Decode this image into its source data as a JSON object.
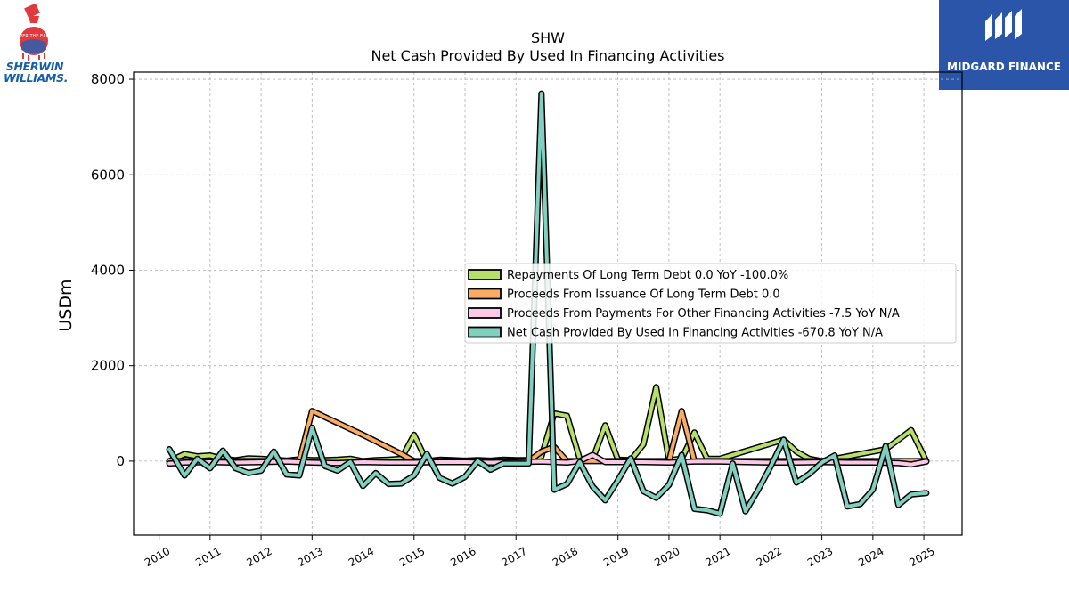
{
  "brand": {
    "left_name": "SHERWIN WILLIAMS.",
    "left_line1": "SHERWIN",
    "left_line2": "WILLIAMS.",
    "left_logo_tagline": "COVER THE EARTH",
    "right_name": "MIDGARD FINANCE"
  },
  "chart_data": {
    "type": "line",
    "title": "SHW",
    "subtitle": "Net Cash Provided By Used In Financing Activities",
    "xlabel": "",
    "ylabel": "USDm",
    "xlim": [
      2009.5,
      2025.75
    ],
    "ylim": [
      -1550,
      8150
    ],
    "xticks": [
      "2010",
      "2011",
      "2012",
      "2013",
      "2014",
      "2015",
      "2016",
      "2017",
      "2018",
      "2019",
      "2020",
      "2021",
      "2022",
      "2023",
      "2024",
      "2025"
    ],
    "yticks": [
      "0",
      "2000",
      "4000",
      "6000",
      "8000"
    ],
    "grid": true,
    "legend_position": "center-right",
    "series": [
      {
        "name": "Repayments Of Long Term Debt  0.0 YoY -100.0%",
        "color": "#b6e06a",
        "x": [
          2010.2,
          2010.5,
          2010.75,
          2011.0,
          2011.25,
          2011.5,
          2011.75,
          2012.0,
          2012.25,
          2012.5,
          2012.75,
          2013.0,
          2013.25,
          2013.5,
          2013.75,
          2014.0,
          2014.25,
          2014.5,
          2014.75,
          2015.0,
          2015.25,
          2015.5,
          2015.75,
          2016.0,
          2016.25,
          2016.5,
          2016.75,
          2017.0,
          2017.25,
          2017.5,
          2017.75,
          2018.0,
          2018.25,
          2018.5,
          2018.75,
          2019.0,
          2019.25,
          2019.5,
          2019.75,
          2020.0,
          2020.25,
          2020.5,
          2020.75,
          2021.0,
          2022.25,
          2022.5,
          2022.75,
          2023.0,
          2023.25,
          2024.0,
          2024.25,
          2024.75,
          2025.05
        ],
        "values": [
          0,
          150,
          100,
          120,
          50,
          20,
          60,
          50,
          30,
          10,
          40,
          20,
          20,
          30,
          50,
          0,
          20,
          30,
          50,
          550,
          0,
          30,
          20,
          10,
          20,
          10,
          30,
          20,
          20,
          100,
          1000,
          950,
          50,
          30,
          750,
          30,
          20,
          350,
          1550,
          20,
          50,
          600,
          50,
          50,
          450,
          200,
          50,
          0,
          50,
          200,
          250,
          650,
          0
        ]
      },
      {
        "name": "Proceeds From Issuance Of Long Term Debt  0.0",
        "color": "#fbac64",
        "x": [
          2010.2,
          2010.5,
          2011.0,
          2011.5,
          2012.0,
          2012.5,
          2012.75,
          2013.0,
          2014.0,
          2014.75,
          2015.0,
          2015.5,
          2016.0,
          2016.5,
          2017.0,
          2017.25,
          2017.5,
          2017.75,
          2018.0,
          2018.5,
          2019.0,
          2019.5,
          2020.0,
          2020.25,
          2020.5,
          2021.0,
          2021.5,
          2022.0,
          2022.5,
          2023.0,
          2023.5,
          2024.0,
          2024.5,
          2025.05
        ],
        "values": [
          0,
          0,
          0,
          0,
          0,
          0,
          0,
          1050,
          550,
          150,
          0,
          0,
          0,
          0,
          0,
          0,
          200,
          300,
          0,
          0,
          0,
          0,
          0,
          1050,
          0,
          0,
          0,
          0,
          0,
          0,
          0,
          0,
          0,
          0
        ]
      },
      {
        "name": "Proceeds From Payments For Other Financing Activities  -7.5 YoY N/A",
        "color": "#fbc8e6",
        "x": [
          2010.2,
          2010.5,
          2011.0,
          2011.5,
          2012.0,
          2012.5,
          2013.0,
          2013.5,
          2014.0,
          2014.5,
          2015.0,
          2015.5,
          2016.0,
          2016.5,
          2017.0,
          2017.5,
          2018.0,
          2018.25,
          2018.5,
          2018.75,
          2019.0,
          2019.5,
          2020.0,
          2020.5,
          2021.0,
          2021.5,
          2022.0,
          2022.5,
          2023.0,
          2023.5,
          2024.0,
          2024.5,
          2024.75,
          2025.05
        ],
        "values": [
          -50,
          -30,
          -20,
          -30,
          -20,
          -10,
          -30,
          -40,
          -20,
          -30,
          -30,
          -20,
          -20,
          -30,
          -20,
          -10,
          -30,
          0,
          130,
          -20,
          -20,
          -20,
          -30,
          -10,
          -10,
          -20,
          -30,
          -30,
          -20,
          -30,
          -30,
          -40,
          -70,
          -10
        ]
      },
      {
        "name": "Net Cash Provided By Used In Financing Activities  -670.8 YoY N/A",
        "color": "#80d0c0",
        "x": [
          2010.2,
          2010.5,
          2010.75,
          2011.0,
          2011.25,
          2011.5,
          2011.75,
          2012.0,
          2012.25,
          2012.5,
          2012.75,
          2013.0,
          2013.25,
          2013.5,
          2013.75,
          2014.0,
          2014.25,
          2014.5,
          2014.75,
          2015.0,
          2015.25,
          2015.5,
          2015.75,
          2016.0,
          2016.25,
          2016.5,
          2016.75,
          2017.0,
          2017.25,
          2017.5,
          2017.75,
          2018.0,
          2018.25,
          2018.5,
          2018.75,
          2019.0,
          2019.25,
          2019.5,
          2019.75,
          2020.0,
          2020.25,
          2020.5,
          2020.75,
          2021.0,
          2021.25,
          2021.5,
          2021.75,
          2022.0,
          2022.25,
          2022.5,
          2022.75,
          2023.0,
          2023.25,
          2023.5,
          2023.75,
          2024.0,
          2024.25,
          2024.5,
          2024.75,
          2025.05
        ],
        "values": [
          250,
          -300,
          50,
          -150,
          220,
          -150,
          -250,
          -200,
          200,
          -280,
          -300,
          700,
          -100,
          -200,
          -20,
          -520,
          -250,
          -480,
          -470,
          -300,
          150,
          -350,
          -470,
          -330,
          0,
          -180,
          -50,
          -50,
          -50,
          7700,
          -600,
          -480,
          -20,
          -530,
          -820,
          -400,
          60,
          -630,
          -770,
          -500,
          130,
          -1000,
          -1030,
          -1100,
          -50,
          -1050,
          -600,
          -100,
          450,
          -450,
          -270,
          -30,
          120,
          -950,
          -900,
          -600,
          320,
          -920,
          -700,
          -670
        ]
      }
    ]
  }
}
